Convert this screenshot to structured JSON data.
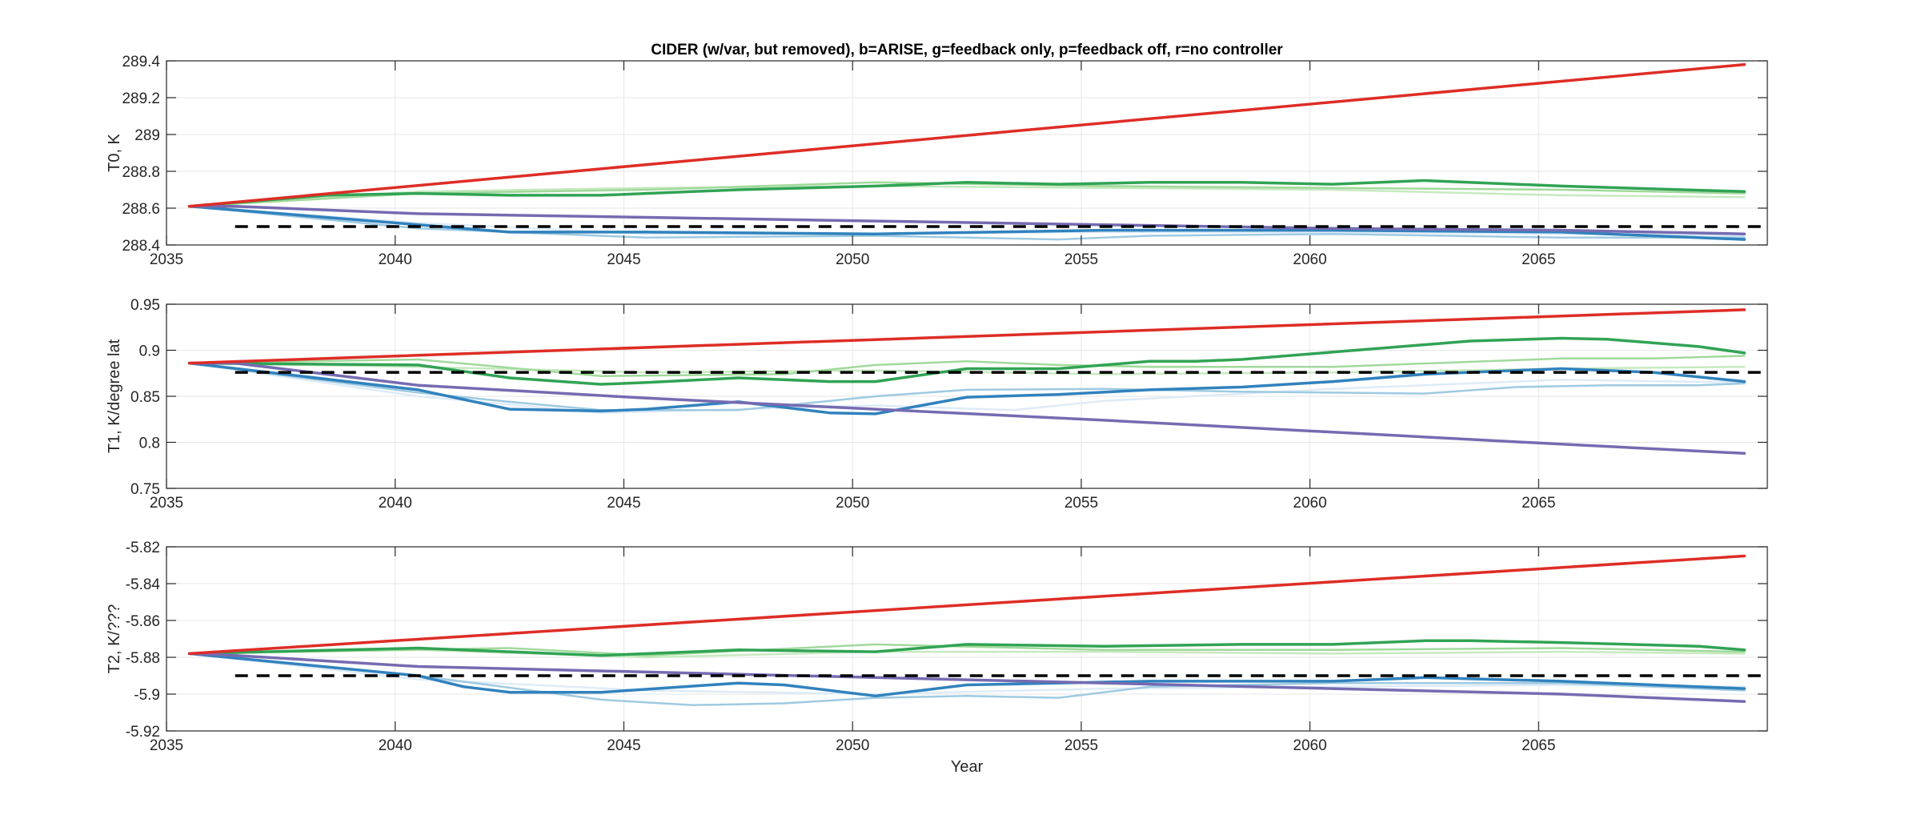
{
  "figure": {
    "title": "CIDER (w/var, but removed), b=ARISE, g=feedback only, p=feedback off, r=no controller"
  },
  "chart_data": [
    {
      "type": "line",
      "ylabel": "T0, K",
      "xlim": [
        2035,
        2070
      ],
      "ylim": [
        288.4,
        289.4
      ],
      "xticks": [
        2035,
        2040,
        2045,
        2050,
        2055,
        2060,
        2065
      ],
      "yticks": [
        288.4,
        288.6,
        288.8,
        289,
        289.2,
        289.4
      ],
      "ytick_labels": [
        "288.4",
        "288.6",
        "288.8",
        "289",
        "289.2",
        "289.4"
      ],
      "grid": true,
      "series": [
        {
          "color": "#c7e9c0",
          "width": 2.5,
          "x": [
            2035.5,
            2040.5,
            2045.5,
            2050.5,
            2055.5,
            2060.5,
            2065.5,
            2069.5
          ],
          "y": [
            288.61,
            288.69,
            288.71,
            288.72,
            288.71,
            288.7,
            288.67,
            288.66
          ]
        },
        {
          "color": "#a1d99b",
          "width": 2.5,
          "x": [
            2035.5,
            2040.5,
            2045.5,
            2050.5,
            2055.5,
            2060.5,
            2065.5,
            2069.5
          ],
          "y": [
            288.61,
            288.68,
            288.7,
            288.74,
            288.72,
            288.71,
            288.7,
            288.68
          ]
        },
        {
          "color": "#31a354",
          "width": 3.5,
          "x": [
            2035.5,
            2038.5,
            2040.5,
            2042.5,
            2044.5,
            2045.5,
            2047.5,
            2050.5,
            2052.5,
            2054.5,
            2056.5,
            2058.5,
            2060.5,
            2062.5,
            2065.5,
            2069.5
          ],
          "y": [
            288.61,
            288.67,
            288.68,
            288.67,
            288.67,
            288.68,
            288.7,
            288.72,
            288.74,
            288.73,
            288.74,
            288.74,
            288.73,
            288.75,
            288.72,
            288.69
          ]
        },
        {
          "color": "#deebf7",
          "width": 2.5,
          "x": [
            2035.5,
            2040.5,
            2045.5,
            2050.5,
            2055.5,
            2060.5,
            2065.5,
            2069.5
          ],
          "y": [
            288.61,
            288.52,
            288.46,
            288.46,
            288.47,
            288.47,
            288.46,
            288.45
          ]
        },
        {
          "color": "#9ecae1",
          "width": 2.5,
          "x": [
            2035.5,
            2040.5,
            2045.5,
            2050.5,
            2052.5,
            2054.5,
            2056.5,
            2060.5,
            2065.5,
            2069.5
          ],
          "y": [
            288.61,
            288.49,
            288.44,
            288.45,
            288.44,
            288.43,
            288.45,
            288.46,
            288.44,
            288.44
          ]
        },
        {
          "color": "#3182bd",
          "width": 3.5,
          "x": [
            2035.5,
            2040.5,
            2042.5,
            2045.5,
            2050.5,
            2055.5,
            2060.5,
            2065.5,
            2069.5
          ],
          "y": [
            288.61,
            288.51,
            288.47,
            288.47,
            288.46,
            288.48,
            288.48,
            288.47,
            288.43
          ]
        },
        {
          "color": "#756bb1",
          "width": 3.5,
          "x": [
            2035.5,
            2036.5,
            2040.5,
            2045.5,
            2050.5,
            2055.5,
            2060.5,
            2065.5,
            2069.5
          ],
          "y": [
            288.61,
            288.61,
            288.57,
            288.55,
            288.53,
            288.51,
            288.49,
            288.48,
            288.46
          ]
        },
        {
          "color": "#de2d26",
          "width": 3.5,
          "x": [
            2035.5,
            2069.5
          ],
          "y": [
            288.61,
            289.38
          ]
        },
        {
          "color": "#000000",
          "width": 3.5,
          "dash": "16 11",
          "x": [
            2036.5,
            2070
          ],
          "y": [
            288.5,
            288.5
          ]
        }
      ]
    },
    {
      "type": "line",
      "ylabel": "T1, K/degree lat",
      "xlim": [
        2035,
        2070
      ],
      "ylim": [
        0.75,
        0.95
      ],
      "xticks": [
        2035,
        2040,
        2045,
        2050,
        2055,
        2060,
        2065
      ],
      "yticks": [
        0.75,
        0.8,
        0.85,
        0.9,
        0.95
      ],
      "ytick_labels": [
        "0.75",
        "0.8",
        "0.85",
        "0.9",
        "0.95"
      ],
      "grid": true,
      "series": [
        {
          "color": "#c7e9c0",
          "width": 2.5,
          "x": [
            2035.5,
            2040.5,
            2045.5,
            2050.5,
            2055.5,
            2060.5,
            2065.5,
            2069.5
          ],
          "y": [
            0.886,
            0.882,
            0.876,
            0.878,
            0.874,
            0.876,
            0.88,
            0.882
          ]
        },
        {
          "color": "#a1d99b",
          "width": 2.5,
          "x": [
            2035.5,
            2040.5,
            2044.5,
            2048.5,
            2050.5,
            2052.5,
            2054.5,
            2056.5,
            2060.5,
            2065.5,
            2067.5,
            2069.5
          ],
          "y": [
            0.886,
            0.89,
            0.872,
            0.874,
            0.884,
            0.888,
            0.884,
            0.882,
            0.882,
            0.891,
            0.891,
            0.894
          ]
        },
        {
          "color": "#31a354",
          "width": 3.5,
          "x": [
            2035.5,
            2040.5,
            2042.5,
            2044.5,
            2045.5,
            2047.5,
            2049.5,
            2050.5,
            2052.5,
            2054.5,
            2056.5,
            2057.5,
            2058.5,
            2060.5,
            2062.5,
            2063.5,
            2065.5,
            2066.5,
            2068.5,
            2069.5
          ],
          "y": [
            0.886,
            0.884,
            0.87,
            0.863,
            0.865,
            0.87,
            0.866,
            0.866,
            0.88,
            0.88,
            0.888,
            0.888,
            0.89,
            0.898,
            0.906,
            0.91,
            0.913,
            0.912,
            0.904,
            0.897
          ]
        },
        {
          "color": "#deebf7",
          "width": 2.5,
          "x": [
            2035.5,
            2040.5,
            2044.5,
            2050.5,
            2053.5,
            2055.5,
            2060.5,
            2065.5,
            2069.5
          ],
          "y": [
            0.886,
            0.85,
            0.832,
            0.84,
            0.835,
            0.845,
            0.858,
            0.868,
            0.865
          ]
        },
        {
          "color": "#9ecae1",
          "width": 2.5,
          "x": [
            2035.5,
            2040.5,
            2042.5,
            2044.5,
            2047.5,
            2050.5,
            2052.5,
            2055.5,
            2058.5,
            2060.5,
            2062.5,
            2064.5,
            2066.5,
            2068.5,
            2069.5
          ],
          "y": [
            0.886,
            0.854,
            0.844,
            0.835,
            0.835,
            0.85,
            0.857,
            0.858,
            0.855,
            0.854,
            0.853,
            0.86,
            0.862,
            0.862,
            0.864
          ]
        },
        {
          "color": "#3182bd",
          "width": 3.5,
          "x": [
            2035.5,
            2040.5,
            2042.5,
            2044.5,
            2045.5,
            2047.5,
            2049.5,
            2050.5,
            2052.5,
            2054.5,
            2056.5,
            2058.5,
            2060.5,
            2062.5,
            2065.5,
            2067.5,
            2069.5
          ],
          "y": [
            0.886,
            0.857,
            0.836,
            0.834,
            0.836,
            0.844,
            0.832,
            0.831,
            0.849,
            0.852,
            0.857,
            0.86,
            0.866,
            0.874,
            0.88,
            0.876,
            0.866
          ]
        },
        {
          "color": "#756bb1",
          "width": 3.5,
          "x": [
            2035.5,
            2036.5,
            2040.5,
            2045.5,
            2050.5,
            2055.5,
            2060.5,
            2065.5,
            2069.5
          ],
          "y": [
            0.886,
            0.886,
            0.862,
            0.848,
            0.836,
            0.824,
            0.811,
            0.798,
            0.788
          ]
        },
        {
          "color": "#de2d26",
          "width": 3.5,
          "x": [
            2035.5,
            2069.5
          ],
          "y": [
            0.886,
            0.944
          ]
        },
        {
          "color": "#000000",
          "width": 3.5,
          "dash": "16 11",
          "x": [
            2036.5,
            2070
          ],
          "y": [
            0.876,
            0.876
          ]
        }
      ]
    },
    {
      "type": "line",
      "ylabel": "T2, K/???",
      "xlabel": "Year",
      "xlim": [
        2035,
        2070
      ],
      "ylim": [
        -5.92,
        -5.82
      ],
      "xticks": [
        2035,
        2040,
        2045,
        2050,
        2055,
        2060,
        2065
      ],
      "yticks": [
        -5.92,
        -5.9,
        -5.88,
        -5.86,
        -5.84,
        -5.82
      ],
      "ytick_labels": [
        "-5.92",
        "-5.9",
        "-5.88",
        "-5.86",
        "-5.84",
        "-5.82"
      ],
      "grid": true,
      "series": [
        {
          "color": "#c7e9c0",
          "width": 2.5,
          "x": [
            2035.5,
            2040.5,
            2045.5,
            2050.5,
            2055.5,
            2060.5,
            2065.5,
            2069.5
          ],
          "y": [
            -5.878,
            -5.876,
            -5.88,
            -5.877,
            -5.877,
            -5.878,
            -5.877,
            -5.878
          ]
        },
        {
          "color": "#a1d99b",
          "width": 2.5,
          "x": [
            2035.5,
            2042.5,
            2045.5,
            2050.5,
            2055.5,
            2060.5,
            2065.5,
            2069.5
          ],
          "y": [
            -5.878,
            -5.875,
            -5.879,
            -5.873,
            -5.876,
            -5.876,
            -5.875,
            -5.877
          ]
        },
        {
          "color": "#31a354",
          "width": 3.5,
          "x": [
            2035.5,
            2040.5,
            2044.5,
            2047.5,
            2050.5,
            2052.5,
            2055.5,
            2058.5,
            2060.5,
            2062.5,
            2063.5,
            2065.5,
            2068.5,
            2069.5
          ],
          "y": [
            -5.878,
            -5.875,
            -5.879,
            -5.876,
            -5.877,
            -5.873,
            -5.874,
            -5.873,
            -5.873,
            -5.871,
            -5.871,
            -5.872,
            -5.874,
            -5.876
          ]
        },
        {
          "color": "#deebf7",
          "width": 2.5,
          "x": [
            2035.5,
            2040.5,
            2045.5,
            2050.5,
            2055.5,
            2060.5,
            2065.5,
            2069.5
          ],
          "y": [
            -5.878,
            -5.892,
            -5.898,
            -5.9,
            -5.897,
            -5.896,
            -5.895,
            -5.896
          ]
        },
        {
          "color": "#9ecae1",
          "width": 2.5,
          "x": [
            2035.5,
            2040.5,
            2044.5,
            2046.5,
            2048.5,
            2050.5,
            2052.5,
            2054.5,
            2056.5,
            2060.5,
            2065.5,
            2069.5
          ],
          "y": [
            -5.878,
            -5.89,
            -5.903,
            -5.906,
            -5.905,
            -5.902,
            -5.901,
            -5.902,
            -5.896,
            -5.894,
            -5.894,
            -5.898
          ]
        },
        {
          "color": "#3182bd",
          "width": 3.5,
          "x": [
            2035.5,
            2040.5,
            2041.5,
            2042.5,
            2044.5,
            2047.5,
            2048.5,
            2050.5,
            2052.5,
            2056.5,
            2060.5,
            2062.5,
            2065.5,
            2069.5
          ],
          "y": [
            -5.878,
            -5.89,
            -5.896,
            -5.899,
            -5.899,
            -5.894,
            -5.895,
            -5.901,
            -5.895,
            -5.893,
            -5.893,
            -5.891,
            -5.893,
            -5.897
          ]
        },
        {
          "color": "#756bb1",
          "width": 3.5,
          "x": [
            2035.5,
            2036.5,
            2040.5,
            2045.5,
            2050.5,
            2055.5,
            2060.5,
            2065.5,
            2069.5
          ],
          "y": [
            -5.878,
            -5.879,
            -5.885,
            -5.888,
            -5.891,
            -5.894,
            -5.897,
            -5.9,
            -5.904
          ]
        },
        {
          "color": "#de2d26",
          "width": 3.5,
          "x": [
            2035.5,
            2069.5
          ],
          "y": [
            -5.878,
            -5.825
          ]
        },
        {
          "color": "#000000",
          "width": 3.5,
          "dash": "16 11",
          "x": [
            2036.5,
            2070
          ],
          "y": [
            -5.89,
            -5.89
          ]
        }
      ]
    }
  ]
}
